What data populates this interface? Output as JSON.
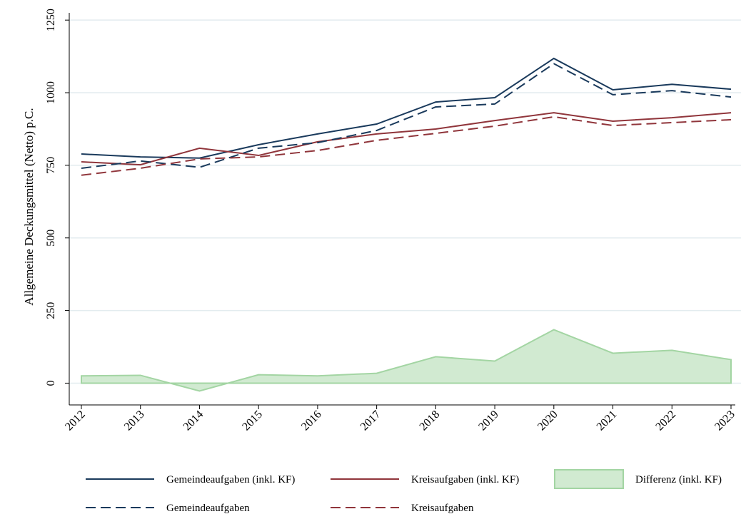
{
  "chart_data": {
    "type": "line",
    "y_label": "Allgemeine Deckungsmittel (Netto) p.C.",
    "categories": [
      "2012",
      "2013",
      "2014",
      "2015",
      "2016",
      "2017",
      "2018",
      "2019",
      "2020",
      "2021",
      "2022",
      "2023"
    ],
    "series": [
      {
        "name": "Gemeindeaufgaben (inkl. KF)",
        "color": "#1a3a5c",
        "dashed": false,
        "values": [
          789,
          779,
          775,
          821,
          858,
          892,
          968,
          983,
          1118,
          1010,
          1029,
          1012
        ]
      },
      {
        "name": "Kreisaufgaben (inkl. KF)",
        "color": "#90353b",
        "dashed": false,
        "values": [
          762,
          752,
          809,
          784,
          831,
          858,
          875,
          904,
          931,
          902,
          914,
          931
        ]
      },
      {
        "name": "Differenz (inkl. KF)",
        "color": "#a3d5a3",
        "kind": "area",
        "values": [
          25,
          27,
          -27,
          29,
          25,
          34,
          91,
          76,
          184,
          103,
          113,
          81
        ]
      },
      {
        "name": "Gemeindeaufgaben",
        "color": "#1a3a5c",
        "dashed": true,
        "values": [
          740,
          765,
          743,
          809,
          828,
          870,
          951,
          961,
          1100,
          993,
          1007,
          985
        ]
      },
      {
        "name": "Kreisaufgaben",
        "color": "#90353b",
        "dashed": true,
        "values": [
          716,
          740,
          772,
          779,
          801,
          836,
          860,
          885,
          917,
          887,
          897,
          907
        ]
      }
    ],
    "ylim": [
      -75,
      1275
    ],
    "yticks": [
      0,
      250,
      500,
      750,
      1000,
      1250
    ],
    "grid": true
  }
}
